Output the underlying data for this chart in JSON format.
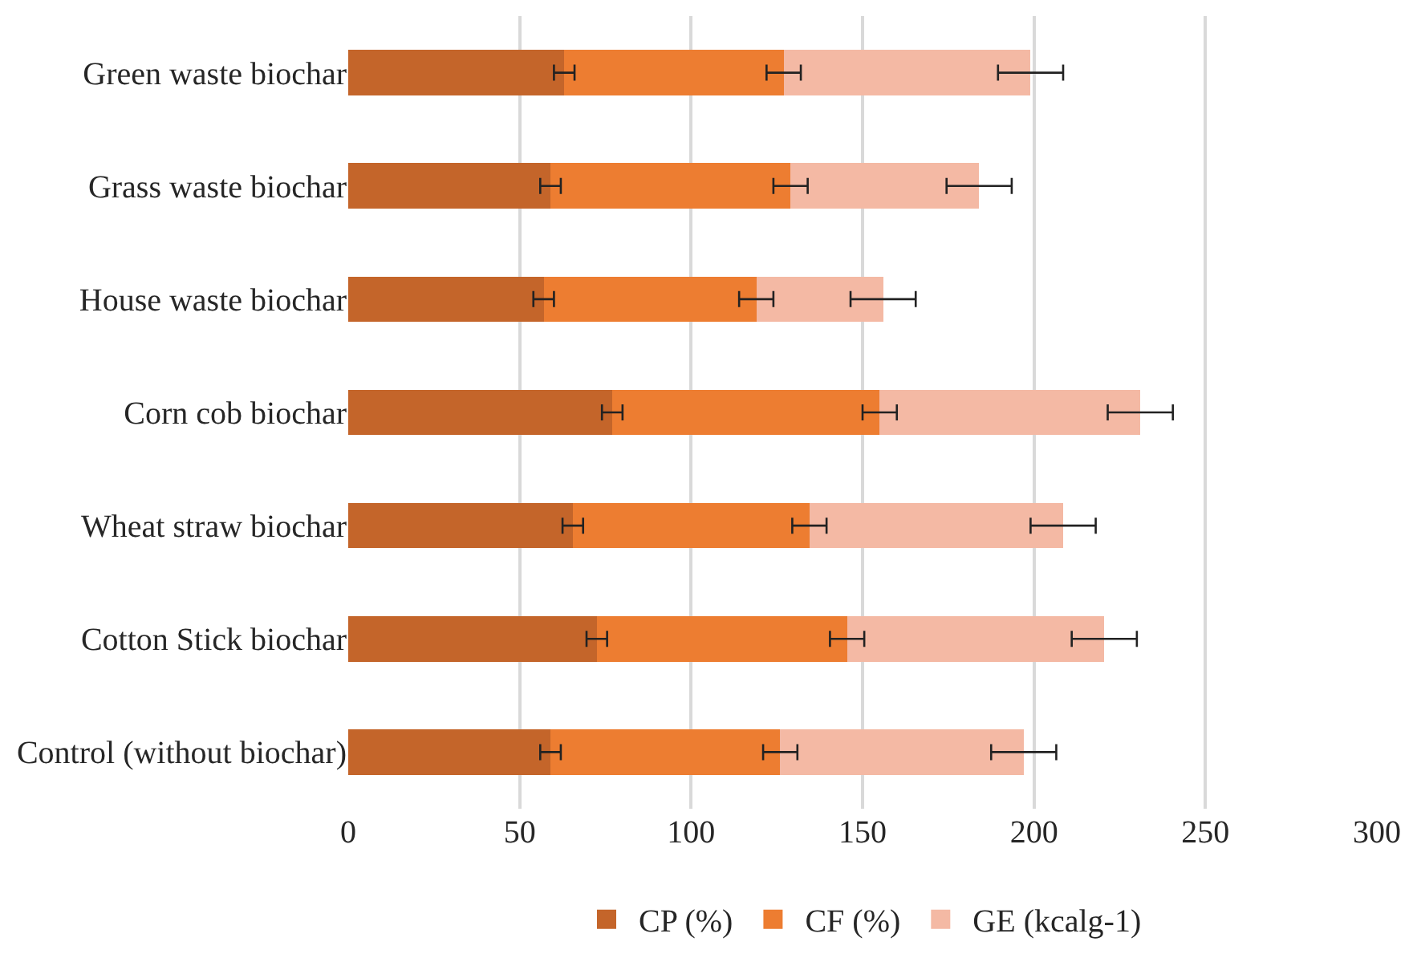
{
  "chart_data": {
    "type": "bar",
    "orientation": "horizontal",
    "stacked": true,
    "categories": [
      "Green waste biochar",
      "Grass waste biochar",
      "House waste biochar",
      "Corn cob biochar",
      "Wheat straw biochar",
      "Cotton Stick biochar",
      "Control (without biochar)"
    ],
    "series": [
      {
        "name": "CP (%)",
        "color": "#c4652a",
        "values": [
          63,
          59,
          57,
          77,
          65.5,
          72.5,
          59
        ],
        "errors": [
          3,
          3,
          3,
          3,
          3,
          3,
          3
        ]
      },
      {
        "name": "CF (%)",
        "color": "#ed7d31",
        "values": [
          64,
          70,
          62,
          78,
          69,
          73,
          67
        ],
        "errors": [
          5,
          5,
          5,
          5,
          5,
          5,
          5
        ]
      },
      {
        "name": "GE (kcalg-1)",
        "color": "#f4b9a4",
        "values": [
          72,
          55,
          37,
          76,
          74,
          75,
          71
        ],
        "errors": [
          9.5,
          9.5,
          9.5,
          9.5,
          9.5,
          9.5,
          9.5
        ]
      }
    ],
    "xlim": [
      0,
      300
    ],
    "xticks": [
      0,
      50,
      100,
      150,
      200,
      250,
      300
    ],
    "grid": "x",
    "legend": "bottom"
  }
}
